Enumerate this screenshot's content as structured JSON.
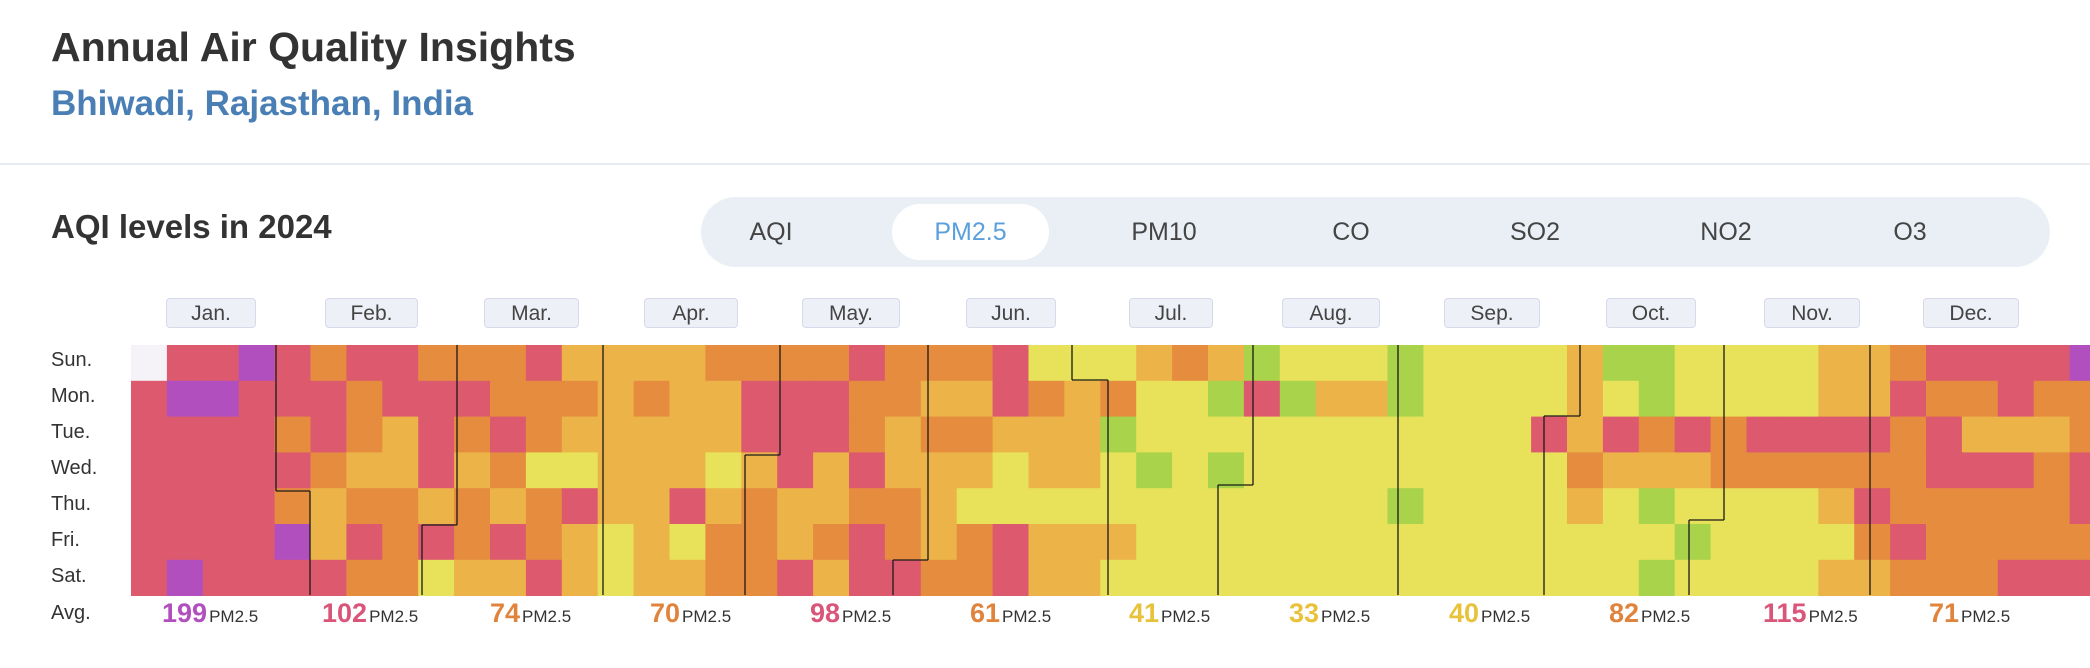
{
  "header": {
    "title": "Annual Air Quality Insights",
    "location": "Bhiwadi, Rajasthan, India"
  },
  "section": {
    "title": "AQI levels in 2024"
  },
  "tabs": [
    {
      "label": "AQI",
      "active": false
    },
    {
      "label": "PM2.5",
      "active": true
    },
    {
      "label": "PM10",
      "active": false
    },
    {
      "label": "CO",
      "active": false
    },
    {
      "label": "SO2",
      "active": false
    },
    {
      "label": "NO2",
      "active": false
    },
    {
      "label": "O3",
      "active": false
    }
  ],
  "months": [
    "Jan.",
    "Feb.",
    "Mar.",
    "Apr.",
    "May.",
    "Jun.",
    "Jul.",
    "Aug.",
    "Sep.",
    "Oct.",
    "Nov.",
    "Dec."
  ],
  "days": [
    "Sun.",
    "Mon.",
    "Tue.",
    "Wed.",
    "Thu.",
    "Fri.",
    "Sat."
  ],
  "avg_label": "Avg.",
  "averages": [
    {
      "value": "199",
      "unit": "PM2.5",
      "color": "#b24fbf"
    },
    {
      "value": "102",
      "unit": "PM2.5",
      "color": "#d9567a"
    },
    {
      "value": "74",
      "unit": "PM2.5",
      "color": "#e0843d"
    },
    {
      "value": "70",
      "unit": "PM2.5",
      "color": "#e0843d"
    },
    {
      "value": "98",
      "unit": "PM2.5",
      "color": "#d9567a"
    },
    {
      "value": "61",
      "unit": "PM2.5",
      "color": "#e0843d"
    },
    {
      "value": "41",
      "unit": "PM2.5",
      "color": "#e8c23a"
    },
    {
      "value": "33",
      "unit": "PM2.5",
      "color": "#e8c23a"
    },
    {
      "value": "40",
      "unit": "PM2.5",
      "color": "#e8c23a"
    },
    {
      "value": "82",
      "unit": "PM2.5",
      "color": "#e0843d"
    },
    {
      "value": "115",
      "unit": "PM2.5",
      "color": "#d9567a"
    },
    {
      "value": "71",
      "unit": "PM2.5",
      "color": "#e0843d"
    }
  ],
  "chart_data": {
    "type": "heatmap",
    "year": 2024,
    "metric": "PM2.5",
    "monthly_avg": [
      199,
      102,
      74,
      70,
      98,
      61,
      41,
      33,
      40,
      82,
      115,
      71
    ],
    "colors": {
      "good": "#a8d34a",
      "moderate": "#e8e25a",
      "sensitive": "#ecb448",
      "unhealthy": "#e58c3e",
      "very_unhealthy": "#dd5a6e",
      "hazardous": "#b24fbf",
      "extreme": "#7a1520",
      "empty": "#f5f3f7"
    },
    "levels": [
      [
        0,
        5,
        5,
        6,
        5,
        4,
        5,
        5,
        4,
        4,
        4,
        5,
        3,
        3,
        3,
        3,
        4,
        4,
        4,
        4,
        5,
        4,
        4,
        4,
        5,
        2,
        2,
        2,
        3,
        4,
        3,
        1,
        2,
        2,
        2,
        1,
        2,
        2,
        2,
        2,
        3,
        1,
        1,
        2,
        2,
        2,
        2,
        3,
        3,
        4,
        5,
        5,
        5,
        5,
        6,
        5,
        5,
        4,
        4,
        4,
        4,
        3,
        3,
        3,
        3,
        3,
        3,
        4,
        5,
        4,
        5,
        5,
        5,
        6,
        5,
        5,
        5,
        5,
        5,
        5,
        3,
        3
      ],
      [
        5,
        6,
        6,
        5,
        5,
        5,
        4,
        5,
        5,
        5,
        4,
        4,
        4,
        3,
        4,
        3,
        3,
        5,
        5,
        5,
        4,
        4,
        3,
        3,
        5,
        4,
        3,
        4,
        2,
        2,
        1,
        5,
        1,
        3,
        3,
        1,
        2,
        2,
        2,
        2,
        3,
        2,
        1,
        2,
        2,
        2,
        2,
        3,
        3,
        5,
        4,
        4,
        5,
        4,
        4,
        4,
        5,
        6,
        4,
        4,
        3,
        5,
        3,
        2
      ],
      [
        5,
        5,
        5,
        5,
        4,
        5,
        4,
        3,
        5,
        4,
        5,
        4,
        3,
        3,
        3,
        3,
        3,
        5,
        5,
        5,
        4,
        3,
        4,
        4,
        3,
        3,
        3,
        1,
        2,
        2,
        2,
        2,
        2,
        2,
        2,
        2,
        2,
        2,
        2,
        5,
        3,
        5,
        4,
        5,
        4,
        5,
        5,
        5,
        5,
        4,
        5,
        3,
        3,
        3,
        4,
        3,
        3,
        3,
        4,
        3,
        3
      ],
      [
        5,
        5,
        5,
        5,
        5,
        4,
        3,
        3,
        5,
        3,
        4,
        2,
        2,
        3,
        3,
        3,
        2,
        3,
        5,
        3,
        5,
        3,
        3,
        3,
        2,
        3,
        3,
        2,
        1,
        2,
        1,
        2,
        2,
        2,
        2,
        2,
        2,
        2,
        2,
        2,
        4,
        3,
        3,
        3,
        4,
        4,
        4,
        4,
        4,
        4,
        5,
        5,
        5,
        4,
        5,
        4,
        3,
        3,
        3,
        3,
        4,
        4,
        4
      ],
      [
        5,
        5,
        5,
        5,
        4,
        3,
        4,
        4,
        3,
        4,
        3,
        4,
        5,
        3,
        3,
        5,
        3,
        4,
        3,
        3,
        4,
        4,
        3,
        2,
        2,
        2,
        2,
        2,
        2,
        2,
        2,
        2,
        2,
        2,
        2,
        1,
        2,
        2,
        2,
        2,
        3,
        2,
        1,
        2,
        2,
        2,
        2,
        3,
        5,
        4,
        4,
        4,
        4,
        4,
        5,
        5,
        4,
        4,
        3,
        3,
        4,
        5,
        3,
        3
      ],
      [
        5,
        5,
        5,
        5,
        6,
        3,
        5,
        4,
        5,
        4,
        5,
        4,
        3,
        2,
        3,
        2,
        4,
        4,
        3,
        4,
        5,
        4,
        3,
        4,
        5,
        3,
        3,
        3,
        2,
        2,
        2,
        2,
        2,
        2,
        2,
        2,
        2,
        2,
        2,
        2,
        2,
        2,
        2,
        1,
        2,
        2,
        2,
        2,
        4,
        5,
        4,
        4,
        4,
        4,
        4,
        5,
        5,
        5,
        4,
        4,
        4,
        5,
        3,
        3
      ],
      [
        5,
        6,
        5,
        5,
        5,
        5,
        4,
        4,
        2,
        3,
        3,
        5,
        3,
        2,
        3,
        3,
        4,
        4,
        5,
        3,
        5,
        5,
        4,
        4,
        5,
        3,
        3,
        2,
        2,
        2,
        2,
        2,
        2,
        2,
        2,
        2,
        2,
        2,
        2,
        2,
        2,
        2,
        1,
        2,
        2,
        2,
        2,
        3,
        3,
        4,
        4,
        4,
        5,
        5,
        5,
        5,
        5,
        5,
        4,
        4,
        4,
        5,
        3,
        3
      ]
    ],
    "min_level": 0,
    "max_level": 7
  }
}
